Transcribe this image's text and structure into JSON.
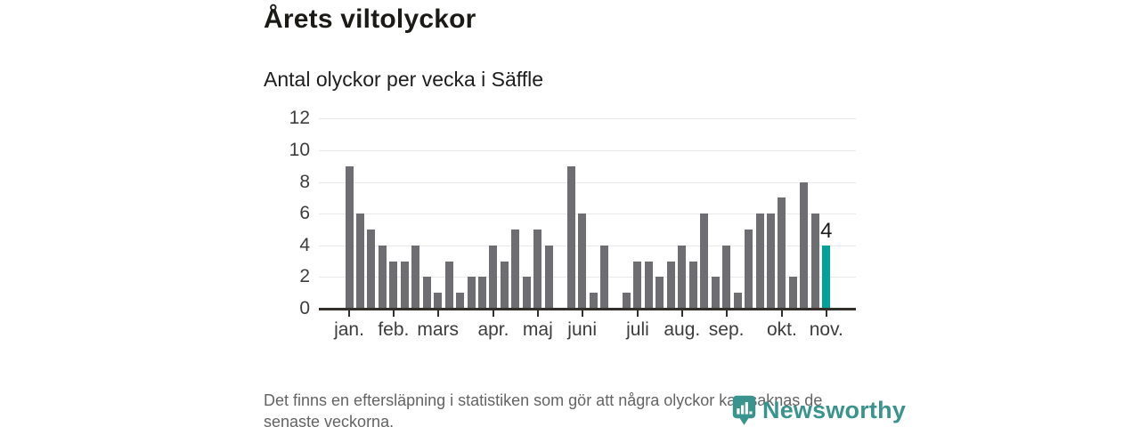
{
  "header": {
    "title": "Årets viltolyckor",
    "subtitle": "Antal olyckor per vecka i Säffle"
  },
  "chart_data": {
    "type": "bar",
    "title": "Årets viltolyckor",
    "subtitle": "Antal olyckor per vecka i Säffle",
    "x_unit": "vecka",
    "values": [
      9,
      6,
      5,
      4,
      3,
      3,
      4,
      2,
      1,
      3,
      1,
      2,
      2,
      4,
      3,
      5,
      2,
      5,
      4,
      0,
      9,
      6,
      1,
      4,
      0,
      1,
      3,
      3,
      2,
      3,
      4,
      3,
      6,
      2,
      4,
      1,
      5,
      6,
      6,
      7,
      2,
      8,
      6,
      4
    ],
    "highlight_index": 43,
    "highlight_label": "4",
    "y_ticks": [
      0,
      2,
      4,
      6,
      8,
      10,
      12
    ],
    "ylim": [
      0,
      12
    ],
    "grid": true,
    "legend_position": "none",
    "x_months": [
      {
        "label": "jan.",
        "week_index": 0
      },
      {
        "label": "feb.",
        "week_index": 4
      },
      {
        "label": "mars",
        "week_index": 8
      },
      {
        "label": "apr.",
        "week_index": 13
      },
      {
        "label": "maj",
        "week_index": 17
      },
      {
        "label": "juni",
        "week_index": 21
      },
      {
        "label": "juli",
        "week_index": 26
      },
      {
        "label": "aug.",
        "week_index": 30
      },
      {
        "label": "sep.",
        "week_index": 34
      },
      {
        "label": "okt.",
        "week_index": 39
      },
      {
        "label": "nov.",
        "week_index": 43
      }
    ],
    "colors": {
      "bar": "#6d6d72",
      "highlight": "#00a29a"
    }
  },
  "footer": {
    "line1": "Det finns en eftersläpning i statistiken som gör att några olyckor kan saknas de",
    "line2": "senaste veckorna."
  },
  "logo": {
    "text": "Newsworthy",
    "icon": "newsworthy-pin-bar-chart-icon",
    "color": "#3a948e"
  }
}
